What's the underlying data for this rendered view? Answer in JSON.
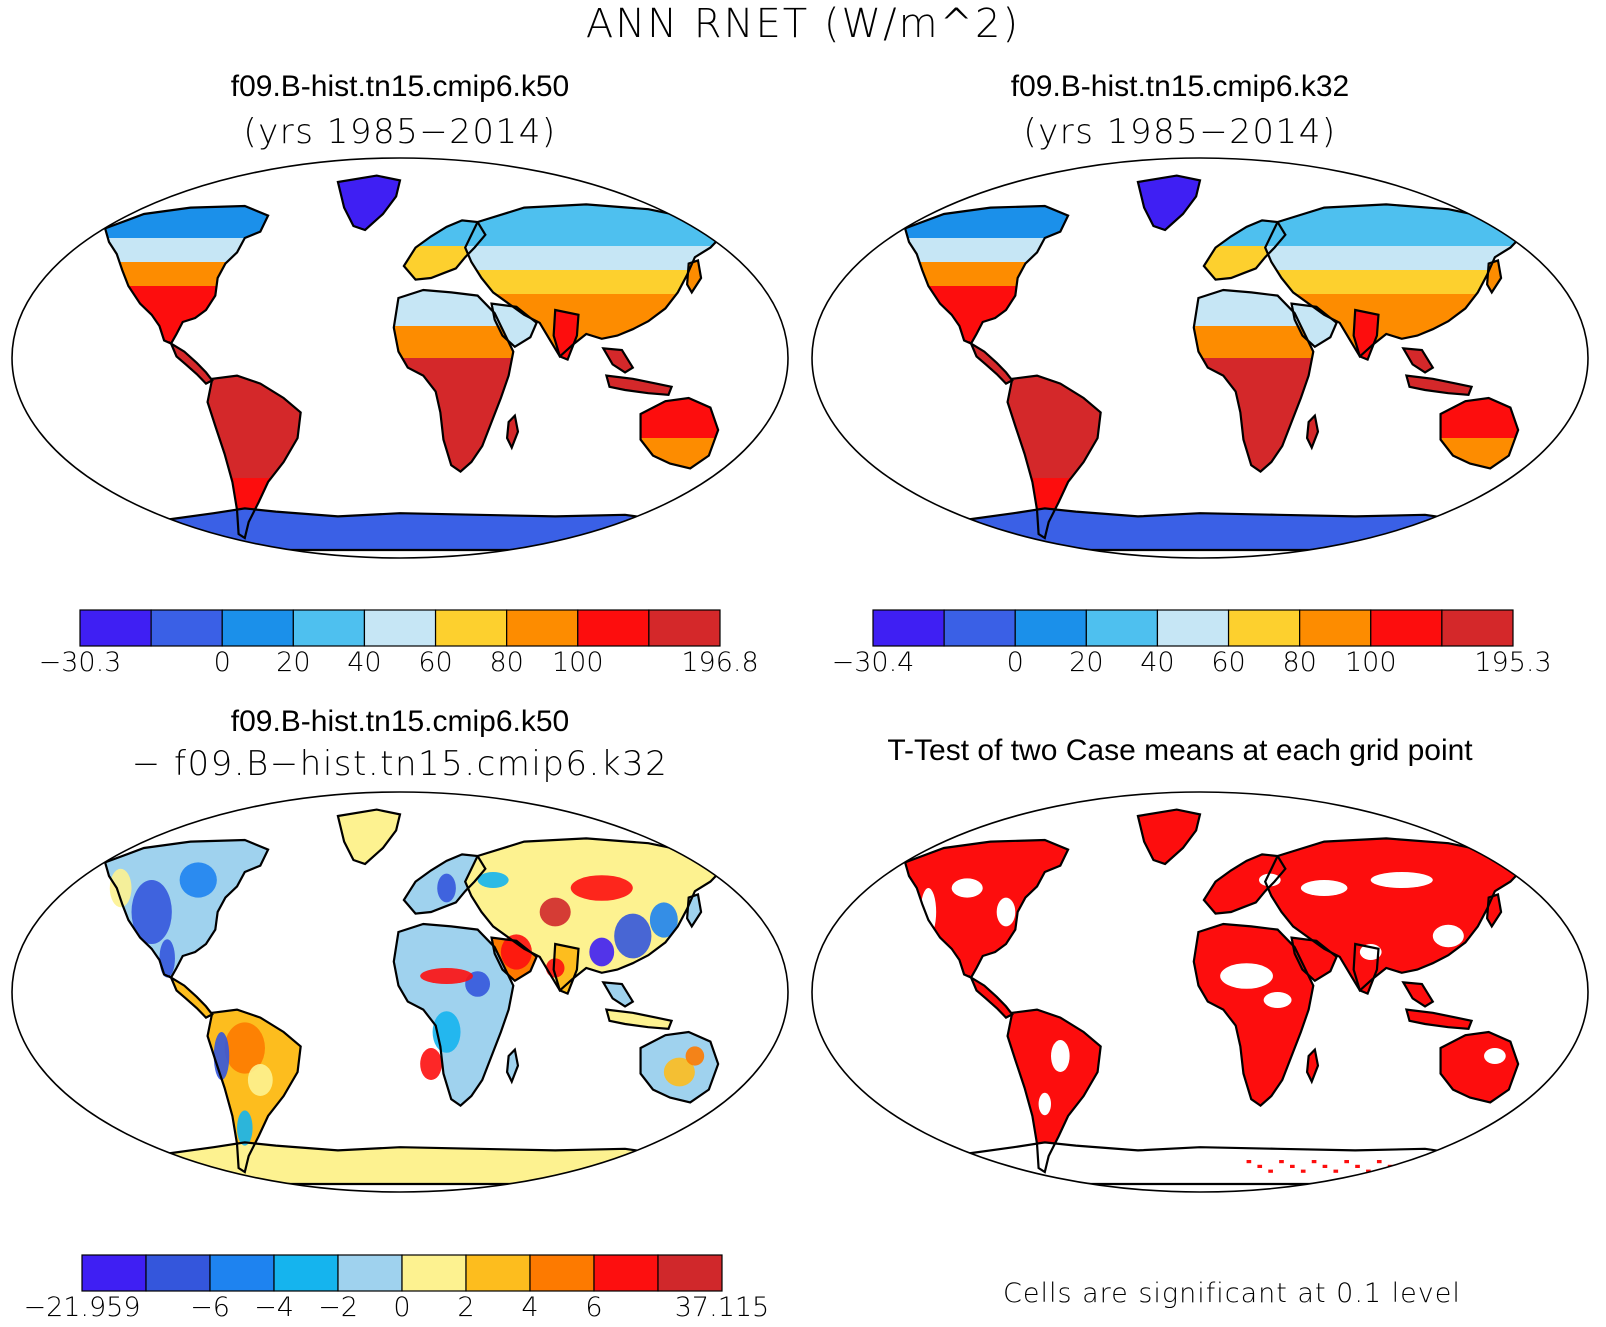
{
  "figure": {
    "title": "ANN RNET (W/m^2)"
  },
  "panels": [
    {
      "id": "k50",
      "title": "f09.B-hist.tn15.cmip6.k50",
      "subtitle": "(yrs 1985−2014)",
      "colorbar": {
        "colors": [
          "#3f1ff3",
          "#3a60e6",
          "#1b90ea",
          "#4ec0ef",
          "#c6e6f5",
          "#fdd02e",
          "#fd8c00",
          "#fd0d0d",
          "#d4282a"
        ],
        "ticks": [
          "−30.3",
          "0",
          "20",
          "40",
          "60",
          "80",
          "100",
          "196.8"
        ],
        "tick_index": [
          0,
          2,
          3,
          4,
          5,
          6,
          7,
          9
        ]
      }
    },
    {
      "id": "k32",
      "title": "f09.B-hist.tn15.cmip6.k32",
      "subtitle": "(yrs 1985−2014)",
      "colorbar": {
        "colors": [
          "#3f1ff3",
          "#3a60e6",
          "#1b90ea",
          "#4ec0ef",
          "#c6e6f5",
          "#fdd02e",
          "#fd8c00",
          "#fd0d0d",
          "#d4282a"
        ],
        "ticks": [
          "−30.4",
          "0",
          "20",
          "40",
          "60",
          "80",
          "100",
          "195.3"
        ],
        "tick_index": [
          0,
          2,
          3,
          4,
          5,
          6,
          7,
          9
        ]
      }
    },
    {
      "id": "diff",
      "title": "f09.B-hist.tn15.cmip6.k50",
      "subtitle": "− f09.B−hist.tn15.cmip6.k32",
      "colorbar": {
        "colors": [
          "#3f1ff3",
          "#3456dc",
          "#1e83f0",
          "#15b4ee",
          "#9fd2ee",
          "#fdf290",
          "#fdbd1e",
          "#fd7a00",
          "#fd0f0f",
          "#d0282b"
        ],
        "ticks": [
          "−21.959",
          "−6",
          "−4",
          "−2",
          "0",
          "2",
          "4",
          "6",
          "37.115"
        ],
        "tick_index": [
          0,
          2,
          3,
          4,
          5,
          6,
          7,
          8,
          10
        ]
      }
    },
    {
      "id": "ttest",
      "title": "T-Test of two Case means at each grid point",
      "footnote": "Cells are significant at 0.1 level",
      "sig_color": "#fd0d0d"
    }
  ],
  "chart_data": {
    "type": "map",
    "projection": "Robinson",
    "variable": "RNET",
    "units": "W/m^2",
    "season": "ANN",
    "maps": [
      {
        "case": "f09.B-hist.tn15.cmip6.k50",
        "years": "1985-2014",
        "min": -30.3,
        "max": 196.8,
        "contour_levels": [
          0,
          20,
          40,
          60,
          80,
          100
        ]
      },
      {
        "case": "f09.B-hist.tn15.cmip6.k32",
        "years": "1985-2014",
        "min": -30.4,
        "max": 195.3,
        "contour_levels": [
          0,
          20,
          40,
          60,
          80,
          100
        ]
      },
      {
        "case": "f09.B-hist.tn15.cmip6.k50 - f09.B-hist.tn15.cmip6.k32",
        "min": -21.959,
        "max": 37.115,
        "contour_levels": [
          -6,
          -4,
          -2,
          0,
          2,
          4,
          6
        ]
      },
      {
        "case": "T-Test",
        "significance_level": 0.1
      }
    ]
  }
}
